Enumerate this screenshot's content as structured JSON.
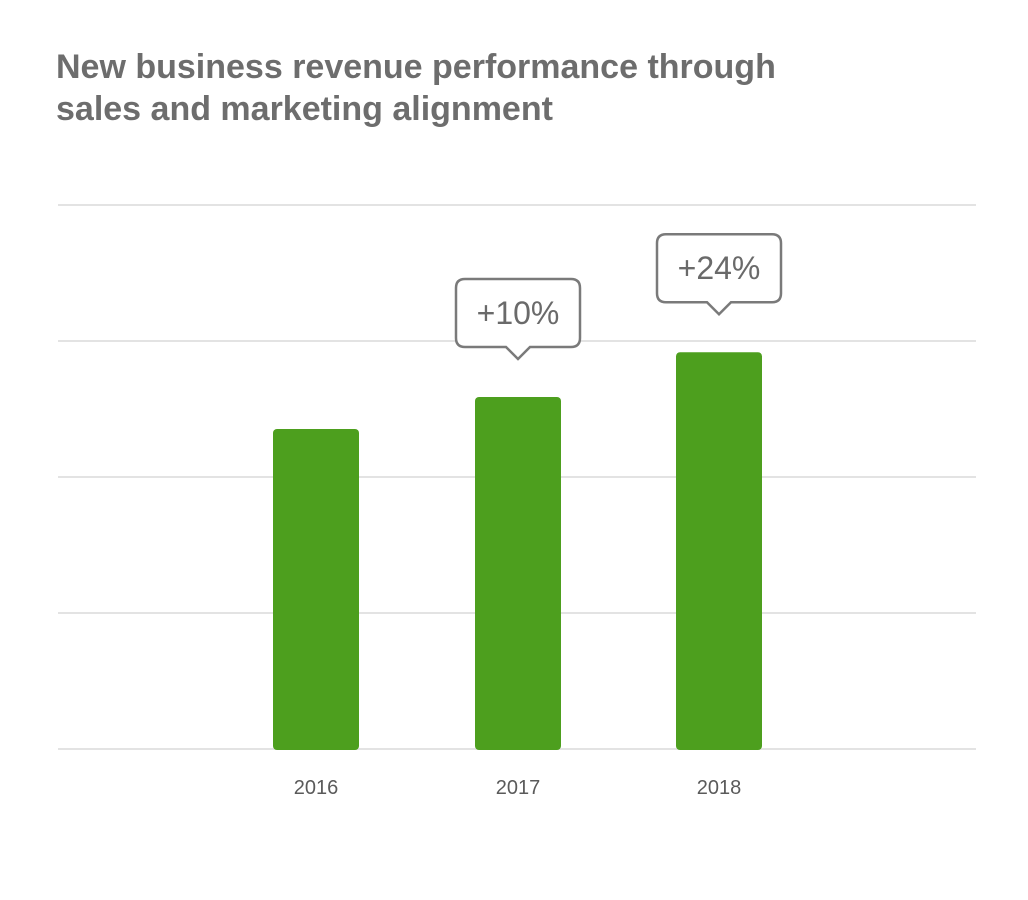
{
  "title_lines": [
    "New business revenue performance through",
    "sales and marketing alignment"
  ],
  "colors": {
    "bar": "#4d9f1e",
    "title": "#6d6d6d",
    "gridline": "#e3e3e3",
    "callout_border": "#7a7a7a"
  },
  "chart_data": {
    "type": "bar",
    "title": "New business revenue performance through sales and marketing alignment",
    "categories": [
      "2016",
      "2017",
      "2018"
    ],
    "values": [
      100,
      110,
      124
    ],
    "annotations": [
      "",
      "+10%",
      "+24%"
    ],
    "xlabel": "",
    "ylabel": "",
    "ylim": [
      0,
      170
    ],
    "grid": true,
    "legend": "none"
  }
}
